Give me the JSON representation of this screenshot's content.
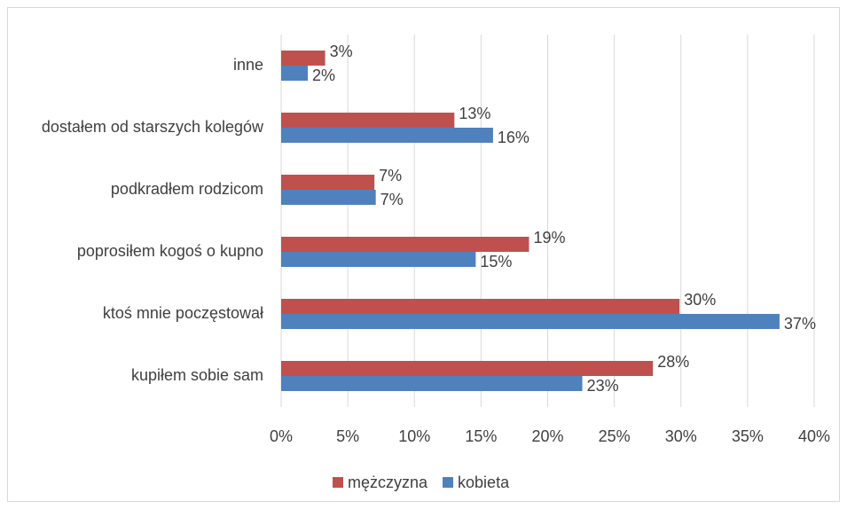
{
  "chart_data": {
    "type": "bar",
    "orientation": "horizontal",
    "categories": [
      "inne",
      "dostałem od starszych kolegów",
      "podkradłem rodzicom",
      "poprosiłem kogoś o kupno",
      "ktoś mnie poczęstował",
      "kupiłem sobie sam"
    ],
    "series": [
      {
        "name": "mężczyzna",
        "color": "#c0504d",
        "values": [
          3.3,
          13.0,
          7.0,
          18.6,
          29.9,
          27.9
        ],
        "value_labels": [
          "3%",
          "13%",
          "7%",
          "19%",
          "30%",
          "28%"
        ]
      },
      {
        "name": "kobieta",
        "color": "#4f81bd",
        "values": [
          2.0,
          15.9,
          7.1,
          14.6,
          37.4,
          22.6
        ],
        "value_labels": [
          "2%",
          "16%",
          "7%",
          "15%",
          "37%",
          "23%"
        ]
      }
    ],
    "xlim": [
      0,
      40
    ],
    "xticks": [
      {
        "value": 0,
        "label": "0%"
      },
      {
        "value": 5,
        "label": "5%"
      },
      {
        "value": 10,
        "label": "10%"
      },
      {
        "value": 15,
        "label": "15%"
      },
      {
        "value": 20,
        "label": "20%"
      },
      {
        "value": 25,
        "label": "25%"
      },
      {
        "value": 30,
        "label": "30%"
      },
      {
        "value": 35,
        "label": "35%"
      },
      {
        "value": 40,
        "label": "40%"
      }
    ],
    "grid": true,
    "legend": "bottom"
  }
}
